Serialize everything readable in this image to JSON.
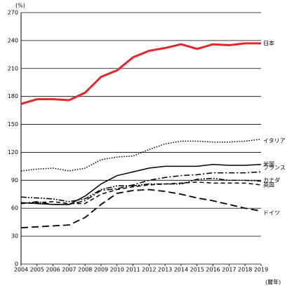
{
  "chart_data": {
    "type": "line",
    "y_unit_label": "(%)",
    "x_unit_label": "(暦年)",
    "x": [
      2004,
      2005,
      2006,
      2007,
      2008,
      2009,
      2010,
      2011,
      2012,
      2013,
      2014,
      2015,
      2016,
      2017,
      2018,
      2019
    ],
    "xlim": [
      2004,
      2019
    ],
    "xticks": [
      2004,
      2005,
      2006,
      2007,
      2008,
      2009,
      2010,
      2011,
      2012,
      2013,
      2014,
      2015,
      2016,
      2017,
      2018,
      2019
    ],
    "ylim": [
      0,
      270
    ],
    "yticks": [
      0,
      30,
      60,
      90,
      120,
      150,
      180,
      210,
      240,
      270
    ],
    "grid": true,
    "series": [
      {
        "name": "日本",
        "color": "#e8262a",
        "dash": "solid-thick",
        "values": [
          172,
          177,
          177,
          176,
          184,
          201,
          208,
          222,
          229,
          232,
          236,
          231,
          236,
          235,
          237,
          237
        ]
      },
      {
        "name": "イタリア",
        "color": "#000000",
        "dash": "dotted",
        "values": [
          100,
          102,
          103,
          100,
          103,
          112,
          115,
          116,
          123,
          129,
          132,
          132,
          131,
          131,
          132,
          134
        ]
      },
      {
        "name": "米国",
        "color": "#000000",
        "dash": "solid",
        "values": [
          66,
          65,
          64,
          64,
          73,
          86,
          95,
          99,
          103,
          105,
          105,
          105,
          107,
          106,
          106,
          107
        ]
      },
      {
        "name": "フランス",
        "color": "#000000",
        "dash": "dash-dot",
        "values": [
          65,
          67,
          64,
          64,
          68,
          79,
          81,
          85,
          90,
          93,
          95,
          96,
          98,
          98,
          98,
          99
        ]
      },
      {
        "name": "カナダ",
        "color": "#000000",
        "dash": "dash-dot-dot",
        "values": [
          72,
          71,
          70,
          67,
          70,
          80,
          84,
          84,
          86,
          86,
          86,
          91,
          92,
          90,
          90,
          89
        ]
      },
      {
        "name": "英国",
        "color": "#000000",
        "dash": "dashed",
        "values": [
          65,
          66,
          67,
          65,
          65,
          75,
          80,
          83,
          85,
          86,
          87,
          88,
          87,
          87,
          87,
          85
        ]
      },
      {
        "name": "ドイツ",
        "color": "#000000",
        "dash": "long-dash",
        "values": [
          39,
          40,
          41,
          42,
          50,
          64,
          76,
          79,
          80,
          78,
          75,
          71,
          68,
          64,
          60,
          57
        ]
      }
    ]
  }
}
